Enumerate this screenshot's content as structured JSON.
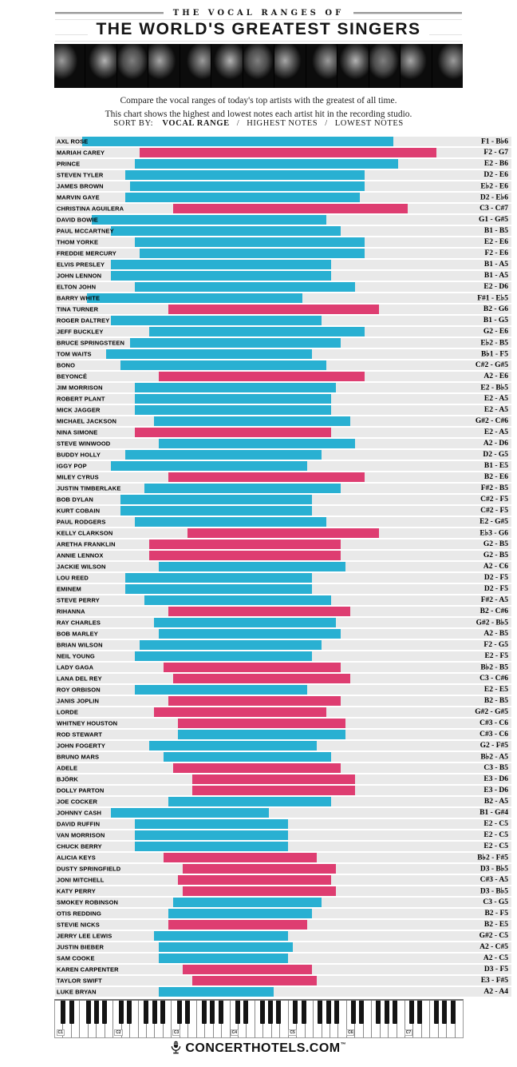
{
  "header": {
    "kicker": "THE VOCAL RANGES OF",
    "title": "THE WORLD'S GREATEST SINGERS",
    "intro_line1": "Compare the vocal ranges of today's top artists with the greatest of all time.",
    "intro_line2": "This chart shows the highest and lowest notes each artist hit in the recording studio.",
    "photo_count": 13
  },
  "sort": {
    "label": "SORT BY:",
    "separator": "/",
    "options": [
      {
        "label": "VOCAL RANGE",
        "active": true
      },
      {
        "label": "HIGHEST NOTES",
        "active": false
      },
      {
        "label": "LOWEST NOTES",
        "active": false
      }
    ]
  },
  "chart_data": {
    "type": "bar",
    "orientation": "horizontal",
    "x_axis": {
      "min_note": "C1",
      "max_note": "C8",
      "scale": "piano semitones",
      "octave_labels": [
        "C1",
        "C2",
        "C3",
        "C4",
        "C5",
        "C6",
        "C7"
      ]
    },
    "range_separator": " - ",
    "series_colors": {
      "male": "#29b0d2",
      "female": "#de3d71"
    },
    "row_background": "#e9e9e9",
    "artists": [
      {
        "name": "AXL ROSE",
        "low": "F1",
        "high": "B♭6",
        "group": "male"
      },
      {
        "name": "MARIAH CAREY",
        "low": "F2",
        "high": "G7",
        "group": "female"
      },
      {
        "name": "PRINCE",
        "low": "E2",
        "high": "B6",
        "group": "male"
      },
      {
        "name": "STEVEN TYLER",
        "low": "D2",
        "high": "E6",
        "group": "male"
      },
      {
        "name": "JAMES BROWN",
        "low": "E♭2",
        "high": "E6",
        "group": "male"
      },
      {
        "name": "MARVIN GAYE",
        "low": "D2",
        "high": "E♭6",
        "group": "male"
      },
      {
        "name": "CHRISTINA AGUILERA",
        "low": "C3",
        "high": "C#7",
        "group": "female"
      },
      {
        "name": "DAVID BOWIE",
        "low": "G1",
        "high": "G#5",
        "group": "male"
      },
      {
        "name": "PAUL MCCARTNEY",
        "low": "B1",
        "high": "B5",
        "group": "male"
      },
      {
        "name": "THOM YORKE",
        "low": "E2",
        "high": "E6",
        "group": "male"
      },
      {
        "name": "FREDDIE MERCURY",
        "low": "F2",
        "high": "E6",
        "group": "male"
      },
      {
        "name": "ELVIS PRESLEY",
        "low": "B1",
        "high": "A5",
        "group": "male"
      },
      {
        "name": "JOHN LENNON",
        "low": "B1",
        "high": "A5",
        "group": "male"
      },
      {
        "name": "ELTON JOHN",
        "low": "E2",
        "high": "D6",
        "group": "male"
      },
      {
        "name": "BARRY WHITE",
        "low": "F#1",
        "high": "E♭5",
        "group": "male"
      },
      {
        "name": "TINA TURNER",
        "low": "B2",
        "high": "G6",
        "group": "female"
      },
      {
        "name": "ROGER DALTREY",
        "low": "B1",
        "high": "G5",
        "group": "male"
      },
      {
        "name": "JEFF BUCKLEY",
        "low": "G2",
        "high": "E6",
        "group": "male"
      },
      {
        "name": "BRUCE SPRINGSTEEN",
        "low": "E♭2",
        "high": "B5",
        "group": "male"
      },
      {
        "name": "TOM WAITS",
        "low": "B♭1",
        "high": "F5",
        "group": "male"
      },
      {
        "name": "BONO",
        "low": "C#2",
        "high": "G#5",
        "group": "male"
      },
      {
        "name": "BEYONCÉ",
        "low": "A2",
        "high": "E6",
        "group": "female"
      },
      {
        "name": "JIM MORRISON",
        "low": "E2",
        "high": "B♭5",
        "group": "male"
      },
      {
        "name": "ROBERT PLANT",
        "low": "E2",
        "high": "A5",
        "group": "male"
      },
      {
        "name": "MICK JAGGER",
        "low": "E2",
        "high": "A5",
        "group": "male"
      },
      {
        "name": "MICHAEL JACKSON",
        "low": "G#2",
        "high": "C#6",
        "group": "male"
      },
      {
        "name": "NINA SIMONE",
        "low": "E2",
        "high": "A5",
        "group": "female"
      },
      {
        "name": "STEVE WINWOOD",
        "low": "A2",
        "high": "D6",
        "group": "male"
      },
      {
        "name": "BUDDY HOLLY",
        "low": "D2",
        "high": "G5",
        "group": "male"
      },
      {
        "name": "IGGY POP",
        "low": "B1",
        "high": "E5",
        "group": "male"
      },
      {
        "name": "MILEY CYRUS",
        "low": "B2",
        "high": "E6",
        "group": "female"
      },
      {
        "name": "JUSTIN TIMBERLAKE",
        "low": "F#2",
        "high": "B5",
        "group": "male"
      },
      {
        "name": "BOB DYLAN",
        "low": "C#2",
        "high": "F5",
        "group": "male"
      },
      {
        "name": "KURT COBAIN",
        "low": "C#2",
        "high": "F5",
        "group": "male"
      },
      {
        "name": "PAUL RODGERS",
        "low": "E2",
        "high": "G#5",
        "group": "male"
      },
      {
        "name": "KELLY CLARKSON",
        "low": "E♭3",
        "high": "G6",
        "group": "female"
      },
      {
        "name": "ARETHA FRANKLIN",
        "low": "G2",
        "high": "B5",
        "group": "female"
      },
      {
        "name": "ANNIE LENNOX",
        "low": "G2",
        "high": "B5",
        "group": "female"
      },
      {
        "name": "JACKIE WILSON",
        "low": "A2",
        "high": "C6",
        "group": "male"
      },
      {
        "name": "LOU REED",
        "low": "D2",
        "high": "F5",
        "group": "male"
      },
      {
        "name": "EMINEM",
        "low": "D2",
        "high": "F5",
        "group": "male"
      },
      {
        "name": "STEVE PERRY",
        "low": "F#2",
        "high": "A5",
        "group": "male"
      },
      {
        "name": "RIHANNA",
        "low": "B2",
        "high": "C#6",
        "group": "female"
      },
      {
        "name": "RAY CHARLES",
        "low": "G#2",
        "high": "B♭5",
        "group": "male"
      },
      {
        "name": "BOB MARLEY",
        "low": "A2",
        "high": "B5",
        "group": "male"
      },
      {
        "name": "BRIAN WILSON",
        "low": "F2",
        "high": "G5",
        "group": "male"
      },
      {
        "name": "NEIL YOUNG",
        "low": "E2",
        "high": "F5",
        "group": "male"
      },
      {
        "name": "LADY GAGA",
        "low": "B♭2",
        "high": "B5",
        "group": "female"
      },
      {
        "name": "LANA DEL REY",
        "low": "C3",
        "high": "C#6",
        "group": "female"
      },
      {
        "name": "ROY ORBISON",
        "low": "E2",
        "high": "E5",
        "group": "male"
      },
      {
        "name": "JANIS JOPLIN",
        "low": "B2",
        "high": "B5",
        "group": "female"
      },
      {
        "name": "LORDE",
        "low": "G#2",
        "high": "G#5",
        "group": "female"
      },
      {
        "name": "WHITNEY HOUSTON",
        "low": "C#3",
        "high": "C6",
        "group": "female"
      },
      {
        "name": "ROD STEWART",
        "low": "C#3",
        "high": "C6",
        "group": "male"
      },
      {
        "name": "JOHN FOGERTY",
        "low": "G2",
        "high": "F#5",
        "group": "male"
      },
      {
        "name": "BRUNO MARS",
        "low": "B♭2",
        "high": "A5",
        "group": "male"
      },
      {
        "name": "ADELE",
        "low": "C3",
        "high": "B5",
        "group": "female"
      },
      {
        "name": "BJÖRK",
        "low": "E3",
        "high": "D6",
        "group": "female"
      },
      {
        "name": "DOLLY PARTON",
        "low": "E3",
        "high": "D6",
        "group": "female"
      },
      {
        "name": "JOE COCKER",
        "low": "B2",
        "high": "A5",
        "group": "male"
      },
      {
        "name": "JOHNNY CASH",
        "low": "B1",
        "high": "G#4",
        "group": "male"
      },
      {
        "name": "DAVID RUFFIN",
        "low": "E2",
        "high": "C5",
        "group": "male"
      },
      {
        "name": "VAN MORRISON",
        "low": "E2",
        "high": "C5",
        "group": "male"
      },
      {
        "name": "CHUCK BERRY",
        "low": "E2",
        "high": "C5",
        "group": "male"
      },
      {
        "name": "ALICIA KEYS",
        "low": "B♭2",
        "high": "F#5",
        "group": "female"
      },
      {
        "name": "DUSTY SPRINGFIELD",
        "low": "D3",
        "high": "B♭5",
        "group": "female"
      },
      {
        "name": "JONI MITCHELL",
        "low": "C#3",
        "high": "A5",
        "group": "female"
      },
      {
        "name": "KATY PERRY",
        "low": "D3",
        "high": "B♭5",
        "group": "female"
      },
      {
        "name": "SMOKEY ROBINSON",
        "low": "C3",
        "high": "G5",
        "group": "male"
      },
      {
        "name": "OTIS REDDING",
        "low": "B2",
        "high": "F5",
        "group": "male"
      },
      {
        "name": "STEVIE NICKS",
        "low": "B2",
        "high": "E5",
        "group": "female"
      },
      {
        "name": "JERRY LEE LEWIS",
        "low": "G#2",
        "high": "C5",
        "group": "male"
      },
      {
        "name": "JUSTIN BIEBER",
        "low": "A2",
        "high": "C#5",
        "group": "male"
      },
      {
        "name": "SAM COOKE",
        "low": "A2",
        "high": "C5",
        "group": "male"
      },
      {
        "name": "KAREN CARPENTER",
        "low": "D3",
        "high": "F5",
        "group": "female"
      },
      {
        "name": "TAYLOR SWIFT",
        "low": "E3",
        "high": "F#5",
        "group": "female"
      },
      {
        "name": "LUKE BRYAN",
        "low": "A2",
        "high": "A4",
        "group": "male"
      }
    ]
  },
  "footer": {
    "brand": "CONCERTHOTELS.COM",
    "tm": "™"
  }
}
